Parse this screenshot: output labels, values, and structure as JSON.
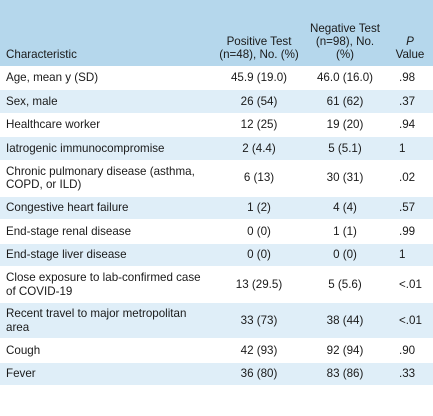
{
  "table": {
    "headers": {
      "characteristic": "Characteristic",
      "positive": "Positive Test (n=48), No. (%)",
      "negative": "Negative Test (n=98), No. (%)",
      "p_letter": "P",
      "p_value": "Value"
    },
    "rows": [
      {
        "label": "Age, mean y (SD)",
        "positive": "45.9 (19.0)",
        "negative": "46.0 (16.0)",
        "p": ".98"
      },
      {
        "label": "Sex, male",
        "positive": "26 (54)",
        "negative": "61 (62)",
        "p": ".37"
      },
      {
        "label": "Healthcare worker",
        "positive": "12 (25)",
        "negative": "19 (20)",
        "p": ".94"
      },
      {
        "label": "Iatrogenic immunocompromise",
        "positive": "2 (4.4)",
        "negative": "5 (5.1)",
        "p": "1"
      },
      {
        "label": "Chronic pulmonary disease (asthma, COPD, or ILD)",
        "positive": "6 (13)",
        "negative": "30 (31)",
        "p": ".02"
      },
      {
        "label": "Congestive heart failure",
        "positive": "1 (2)",
        "negative": "4 (4)",
        "p": ".57"
      },
      {
        "label": "End-stage renal disease",
        "positive": "0 (0)",
        "negative": "1 (1)",
        "p": ".99"
      },
      {
        "label": "End-stage liver disease",
        "positive": "0 (0)",
        "negative": "0 (0)",
        "p": "1"
      },
      {
        "label": "Close exposure to lab-confirmed case of COVID-19",
        "positive": "13 (29.5)",
        "negative": "5 (5.6)",
        "p": "<.01"
      },
      {
        "label": "Recent travel to major metropolitan area",
        "positive": "33 (73)",
        "negative": "38 (44)",
        "p": "<.01"
      },
      {
        "label": "Cough",
        "positive": "42 (93)",
        "negative": "92 (94)",
        "p": ".90"
      },
      {
        "label": "Fever",
        "positive": "36 (80)",
        "negative": "83 (86)",
        "p": ".33"
      }
    ]
  }
}
